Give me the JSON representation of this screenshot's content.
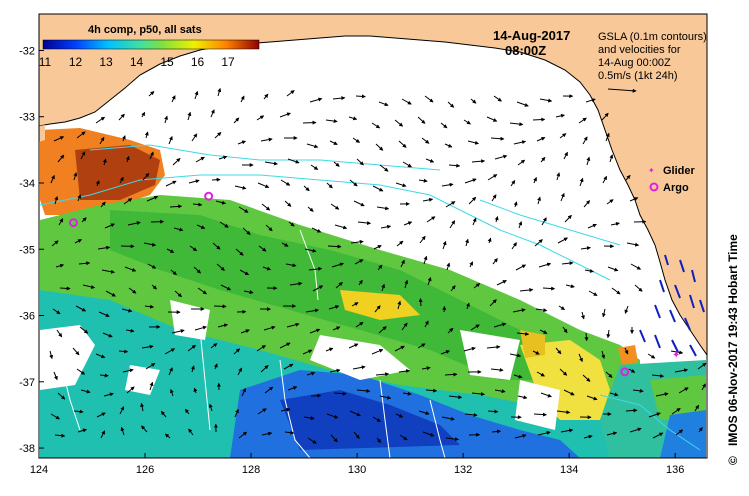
{
  "map": {
    "colorbar_title": "4h comp, p50, all sats",
    "colorbar_ticks": [
      "11",
      "12",
      "13",
      "14",
      "15",
      "16",
      "17"
    ],
    "date": "14-Aug-2017",
    "time": "08:00Z",
    "legend_lines": [
      "GSLA (0.1m contours)",
      "and velocities for",
      "14-Aug 00:00Z",
      "0.5m/s (1kt 24h)"
    ],
    "glider_label": "Glider",
    "argo_label": "Argo",
    "credit": "IMOS 06-Nov-2017 19:43 Hobart Time",
    "copyright_symbol": "©",
    "x_ticks": [
      "124",
      "126",
      "128",
      "130",
      "132",
      "134",
      "136"
    ],
    "y_ticks": [
      "-32",
      "-33",
      "-34",
      "-35",
      "-36",
      "-37",
      "-38"
    ],
    "colors": {
      "land": "#f8c898",
      "contour": "#40d8e8",
      "glider": "#e020e0",
      "argo": "#e020e0",
      "vector_blue": "#1020c0"
    }
  },
  "argo_floats": [
    {
      "lon": 124.65,
      "lat": -34.6
    },
    {
      "lon": 127.2,
      "lat": -34.2
    },
    {
      "lon": 135.05,
      "lat": -36.85
    }
  ]
}
